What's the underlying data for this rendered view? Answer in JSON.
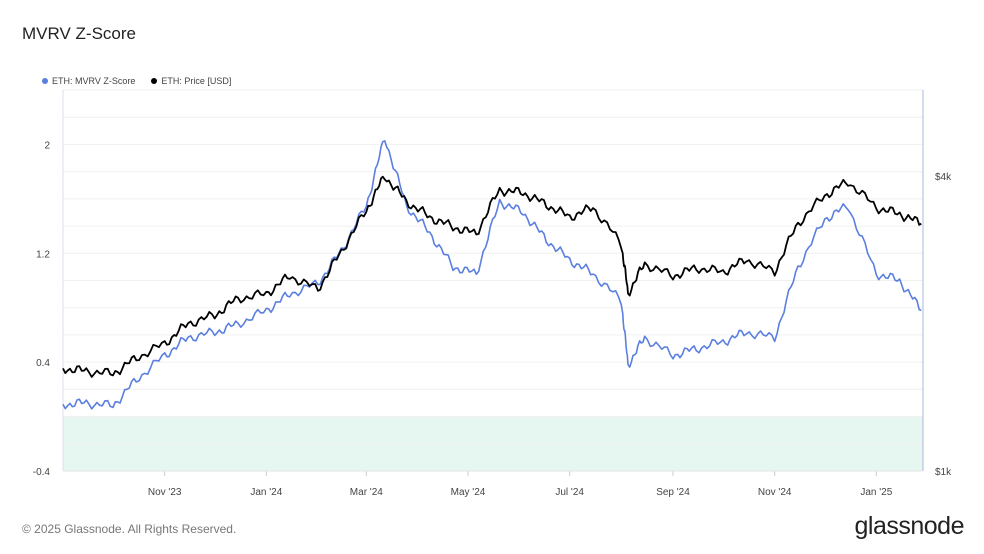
{
  "title": "MVRV Z-Score",
  "footer": "© 2025 Glassnode. All Rights Reserved.",
  "logo": "glassnode",
  "legend": [
    {
      "label": "ETH: MVRV Z-Score",
      "color": "#5b7fe0"
    },
    {
      "label": "ETH: Price [USD]",
      "color": "#000000"
    }
  ],
  "chart_data": {
    "type": "line",
    "title": "MVRV Z-Score",
    "x_tick_labels": [
      "Nov '23",
      "Jan '24",
      "Mar '24",
      "May '24",
      "Jul '24",
      "Sep '24",
      "Nov '24",
      "Jan '25"
    ],
    "left_axis": {
      "ticks": [
        "2",
        "1.2",
        "0.4",
        "-0.4"
      ],
      "ylim": [
        -0.4,
        2.4
      ]
    },
    "right_axis": {
      "ticks": [
        "$4k",
        "$1k"
      ],
      "scale": "log",
      "ylim": [
        1000,
        6000
      ]
    },
    "green_band": [
      -0.4,
      0.0
    ],
    "grid": true,
    "legend_position": "top-left",
    "x": [
      "2023-09-01",
      "2023-09-15",
      "2023-10-01",
      "2023-10-15",
      "2023-11-01",
      "2023-11-15",
      "2023-12-01",
      "2023-12-15",
      "2024-01-01",
      "2024-01-15",
      "2024-02-01",
      "2024-02-15",
      "2024-03-01",
      "2024-03-12",
      "2024-03-25",
      "2024-04-08",
      "2024-04-22",
      "2024-05-06",
      "2024-05-20",
      "2024-06-03",
      "2024-06-17",
      "2024-07-01",
      "2024-07-15",
      "2024-08-01",
      "2024-08-05",
      "2024-08-15",
      "2024-09-01",
      "2024-09-15",
      "2024-10-01",
      "2024-10-15",
      "2024-11-01",
      "2024-11-15",
      "2024-12-01",
      "2024-12-15",
      "2025-01-01",
      "2025-01-15",
      "2025-01-28"
    ],
    "series": [
      {
        "name": "ETH: MVRV Z-Score",
        "color": "#5b7fe0",
        "axis": "left",
        "values": [
          0.09,
          0.1,
          0.08,
          0.27,
          0.45,
          0.58,
          0.62,
          0.68,
          0.78,
          0.9,
          0.98,
          1.22,
          1.55,
          2.05,
          1.55,
          1.35,
          1.1,
          1.05,
          1.58,
          1.5,
          1.3,
          1.15,
          1.05,
          0.85,
          0.38,
          0.58,
          0.45,
          0.5,
          0.55,
          0.62,
          0.58,
          1.1,
          1.45,
          1.55,
          1.05,
          1.0,
          0.78
        ]
      },
      {
        "name": "ETH: Price [USD]",
        "color": "#000000",
        "axis": "right",
        "values": [
          1620,
          1600,
          1580,
          1700,
          1820,
          2000,
          2080,
          2250,
          2300,
          2500,
          2350,
          2800,
          3400,
          4000,
          3550,
          3300,
          3150,
          3050,
          3750,
          3700,
          3500,
          3300,
          3450,
          2900,
          2300,
          2650,
          2500,
          2600,
          2550,
          2700,
          2550,
          3200,
          3650,
          3900,
          3450,
          3350,
          3200
        ]
      }
    ]
  }
}
